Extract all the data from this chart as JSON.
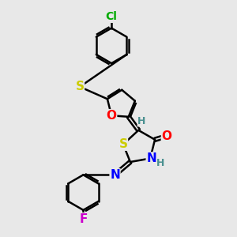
{
  "bg_color": "#e8e8e8",
  "atom_colors": {
    "C": "#000000",
    "H": "#4a9090",
    "N": "#0000ff",
    "O": "#ff0000",
    "S": "#cccc00",
    "Cl": "#00aa00",
    "F": "#cc00cc"
  },
  "bond_color": "#000000",
  "bond_width": 1.8,
  "font_size_atom": 11,
  "font_size_small": 9,
  "font_size_cl": 10
}
